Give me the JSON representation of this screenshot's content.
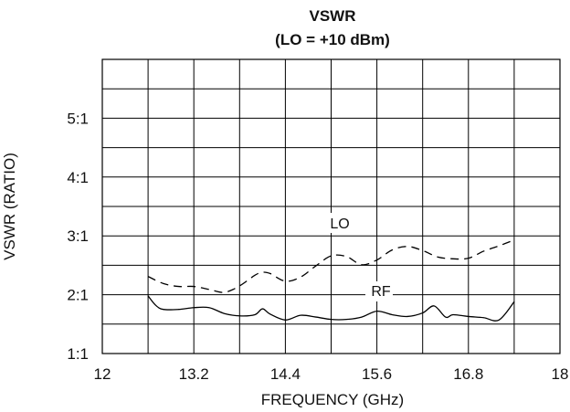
{
  "chart_data": {
    "type": "line",
    "title": "VSWR",
    "subtitle": "(LO = +10 dBm)",
    "xlabel": "FREQUENCY (GHz)",
    "ylabel": "VSWR (RATIO)",
    "xlim": [
      12,
      18
    ],
    "ylim": [
      1,
      6
    ],
    "x_ticks": [
      12,
      13.2,
      14.4,
      15.6,
      16.8,
      18
    ],
    "x_tick_labels": [
      "12",
      "13.2",
      "14.4",
      "15.6",
      "16.8",
      "18"
    ],
    "y_ticks": [
      1,
      2,
      3,
      4,
      5
    ],
    "y_tick_labels": [
      "1:1",
      "2:1",
      "3:1",
      "4:1",
      "5:1"
    ],
    "grid": true,
    "series": [
      {
        "name": "LO",
        "style": "dashed",
        "x": [
          12.6,
          12.8,
          13.0,
          13.2,
          13.4,
          13.6,
          13.8,
          14.0,
          14.1,
          14.2,
          14.4,
          14.6,
          14.8,
          15.0,
          15.2,
          15.4,
          15.6,
          15.8,
          16.0,
          16.2,
          16.4,
          16.6,
          16.8,
          17.0,
          17.2,
          17.4
        ],
        "values": [
          2.31,
          2.19,
          2.14,
          2.14,
          2.09,
          2.04,
          2.15,
          2.33,
          2.38,
          2.36,
          2.23,
          2.3,
          2.49,
          2.66,
          2.65,
          2.51,
          2.59,
          2.76,
          2.82,
          2.75,
          2.64,
          2.61,
          2.62,
          2.74,
          2.83,
          2.93
        ]
      },
      {
        "name": "RF",
        "style": "solid",
        "x": [
          12.6,
          12.7,
          12.8,
          13.0,
          13.2,
          13.4,
          13.6,
          13.8,
          14.0,
          14.1,
          14.2,
          14.4,
          14.6,
          14.8,
          15.0,
          15.2,
          15.4,
          15.6,
          15.8,
          16.0,
          16.2,
          16.35,
          16.5,
          16.6,
          16.8,
          17.0,
          17.2,
          17.4
        ],
        "values": [
          1.98,
          1.82,
          1.75,
          1.75,
          1.78,
          1.78,
          1.68,
          1.64,
          1.66,
          1.76,
          1.67,
          1.57,
          1.65,
          1.62,
          1.58,
          1.58,
          1.62,
          1.72,
          1.66,
          1.63,
          1.69,
          1.81,
          1.62,
          1.66,
          1.63,
          1.61,
          1.57,
          1.88
        ]
      }
    ]
  }
}
